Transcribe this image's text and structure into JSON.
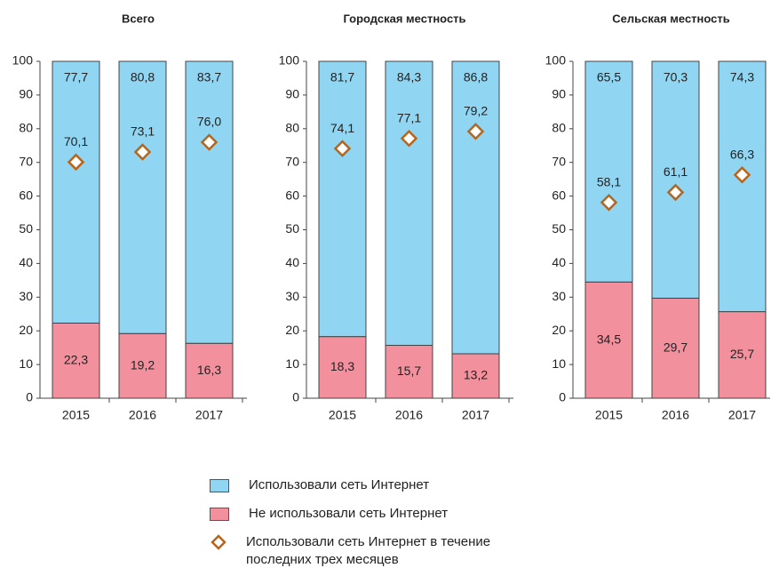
{
  "legend": [
    {
      "name": "Использовали сеть Интернет",
      "color": "#90d5f2",
      "type": "bar"
    },
    {
      "name": "Не использовали сеть Интернет",
      "color": "#f2909e",
      "type": "bar"
    },
    {
      "name": "Использовали сеть Интернет в течение последних трех месяцев",
      "color": "#b5651d",
      "type": "scatter"
    }
  ],
  "chart_data": [
    {
      "type": "bar",
      "title": "Всего",
      "categories": [
        "2015",
        "2016",
        "2017"
      ],
      "ylim": [
        0,
        100
      ],
      "yticks": [
        0,
        10,
        20,
        30,
        40,
        50,
        60,
        70,
        80,
        90,
        100
      ],
      "series": [
        {
          "values": [
            77.7,
            80.8,
            83.7
          ],
          "value_labels": [
            "77,7",
            "80,8",
            "83,7"
          ]
        },
        {
          "values": [
            22.3,
            19.2,
            16.3
          ],
          "value_labels": [
            "22,3",
            "19,2",
            "16,3"
          ]
        },
        {
          "values": [
            70.1,
            73.1,
            76.0
          ],
          "value_labels": [
            "70,1",
            "73,1",
            "76,0"
          ]
        }
      ]
    },
    {
      "type": "bar",
      "title": "Городская местность",
      "categories": [
        "2015",
        "2016",
        "2017"
      ],
      "ylim": [
        0,
        100
      ],
      "yticks": [
        0,
        10,
        20,
        30,
        40,
        50,
        60,
        70,
        80,
        90,
        100
      ],
      "series": [
        {
          "values": [
            81.7,
            84.3,
            86.8
          ],
          "value_labels": [
            "81,7",
            "84,3",
            "86,8"
          ]
        },
        {
          "values": [
            18.3,
            15.7,
            13.2
          ],
          "value_labels": [
            "18,3",
            "15,7",
            "13,2"
          ]
        },
        {
          "values": [
            74.1,
            77.1,
            79.2
          ],
          "value_labels": [
            "74,1",
            "77,1",
            "79,2"
          ]
        }
      ]
    },
    {
      "type": "bar",
      "title": "Сельская местность",
      "categories": [
        "2015",
        "2016",
        "2017"
      ],
      "ylim": [
        0,
        100
      ],
      "yticks": [
        0,
        10,
        20,
        30,
        40,
        50,
        60,
        70,
        80,
        90,
        100
      ],
      "series": [
        {
          "values": [
            65.5,
            70.3,
            74.3
          ],
          "value_labels": [
            "65,5",
            "70,3",
            "74,3"
          ]
        },
        {
          "values": [
            34.5,
            29.7,
            25.7
          ],
          "value_labels": [
            "34,5",
            "29,7",
            "25,7"
          ]
        },
        {
          "values": [
            58.1,
            61.1,
            66.3
          ],
          "value_labels": [
            "58,1",
            "61,1",
            "66,3"
          ]
        }
      ]
    }
  ]
}
